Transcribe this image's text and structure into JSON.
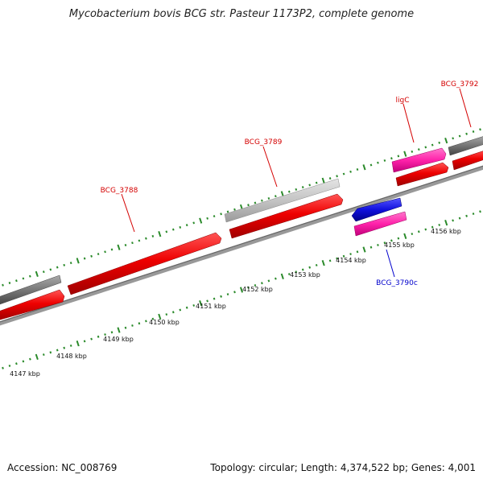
{
  "title": "Mycobacterium bovis BCG str. Pasteur 1173P2, complete genome",
  "footer": {
    "accession": "Accession: NC_008769",
    "summary": "Topology: circular; Length: 4,374,522 bp; Genes: 4,001"
  },
  "scale_labels": [
    "4147 kbp",
    "4148 kbp",
    "4149 kbp",
    "4150 kbp",
    "4151 kbp",
    "4152 kbp",
    "4153 kbp",
    "4154 kbp",
    "4155 kbp",
    "4156 kbp"
  ],
  "gene_labels": [
    {
      "name": "BCG_3788",
      "color": "#d40000"
    },
    {
      "name": "BCG_3789",
      "color": "#d40000"
    },
    {
      "name": "ligC",
      "color": "#d40000"
    },
    {
      "name": "BCG_3792",
      "color": "#d40000"
    },
    {
      "name": "BCG_3790c",
      "color": "#0000cc"
    }
  ],
  "colors": {
    "cds": "#ee0000",
    "gene": "#8a8a8a",
    "rna": "#ff33aa",
    "reverse_cds": "#1010dd",
    "pseudo": "#c8c8c8",
    "ticks": "#2a8a2a",
    "backbone": "#777777"
  }
}
